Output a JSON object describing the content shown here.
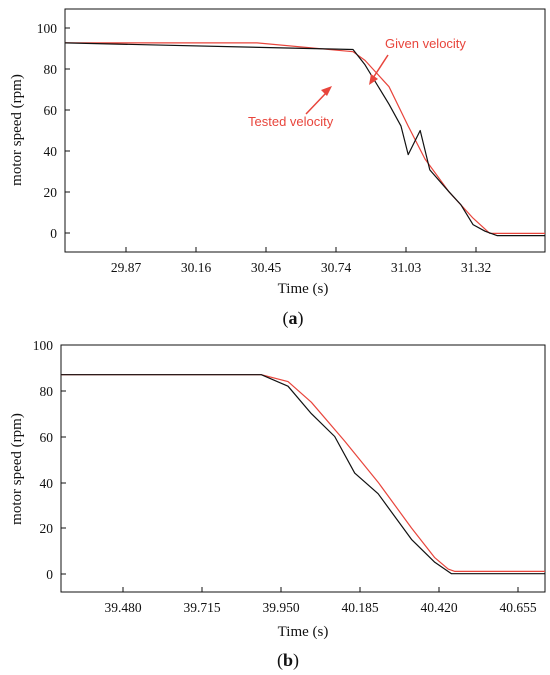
{
  "chart_data": [
    {
      "type": "line",
      "caption_open": "(",
      "caption_letter": "a",
      "caption_close": ")",
      "xlabel": "Time (s)",
      "ylabel": "motor speed (rpm)",
      "xlim": [
        29.6,
        31.6
      ],
      "ylim": [
        -7.5,
        103.5
      ],
      "x_ticks": [
        "29.87",
        "30.16",
        "30.45",
        "30.74",
        "31.03",
        "31.32"
      ],
      "y_ticks": [
        "0",
        "20",
        "40",
        "60",
        "80",
        "100"
      ],
      "grid": false,
      "annotations": [
        "Given velocity",
        "Tested velocity"
      ],
      "series": [
        {
          "color": "#e8453c",
          "x": [
            29.6,
            30.0,
            30.4,
            30.8,
            30.85,
            30.95,
            31.03,
            31.1,
            31.2,
            31.3,
            31.37,
            31.4,
            31.6
          ],
          "y": [
            88,
            88,
            88,
            84,
            80,
            68,
            50,
            35,
            20,
            8,
            1,
            1,
            1
          ]
        },
        {
          "color": "#111111",
          "x": [
            29.6,
            30.8,
            30.85,
            30.9,
            30.95,
            31.0,
            31.03,
            31.08,
            31.12,
            31.2,
            31.25,
            31.3,
            31.35,
            31.4,
            31.6
          ],
          "y": [
            88,
            85,
            78,
            69,
            60,
            50,
            37,
            48,
            30,
            20,
            14,
            5,
            2,
            0,
            0
          ]
        }
      ]
    },
    {
      "type": "line",
      "caption_open": "(",
      "caption_letter": "b",
      "caption_close": ")",
      "xlabel": "Time (s)",
      "ylabel": "motor speed (rpm)",
      "xlim": [
        39.3,
        40.75
      ],
      "ylim": [
        -8,
        100
      ],
      "x_ticks": [
        "39.480",
        "39.715",
        "39.950",
        "40.185",
        "40.420",
        "40.655"
      ],
      "y_ticks": [
        "0",
        "20",
        "40",
        "60",
        "80",
        "100"
      ],
      "grid": false,
      "series": [
        {
          "color": "#e8453c",
          "x": [
            39.3,
            39.9,
            39.98,
            40.05,
            40.15,
            40.25,
            40.35,
            40.42,
            40.46,
            40.48,
            40.75
          ],
          "y": [
            87,
            87,
            84,
            75,
            58,
            40,
            20,
            7,
            2,
            1,
            1
          ]
        },
        {
          "color": "#111111",
          "x": [
            39.3,
            39.9,
            39.98,
            40.05,
            40.12,
            40.18,
            40.25,
            40.35,
            40.42,
            40.47,
            40.75
          ],
          "y": [
            87,
            87,
            82,
            70,
            60,
            44,
            35,
            15,
            5,
            0,
            0
          ]
        }
      ]
    }
  ]
}
